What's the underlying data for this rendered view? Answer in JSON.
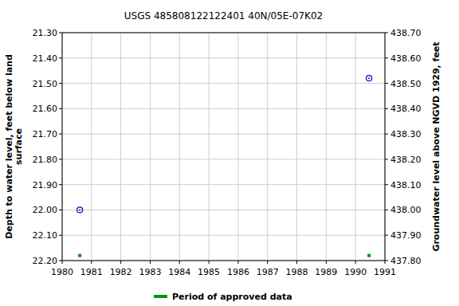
{
  "chart_data": {
    "type": "scatter",
    "title": "USGS 485808122122401 40N/05E-07K02",
    "y_label": [
      "Depth to water level, feet below land",
      "surface"
    ],
    "y2_label": "Groundwater level above NGVD 1929, feet",
    "xlim": [
      1980,
      1991
    ],
    "xticks": [
      1980,
      1981,
      1982,
      1983,
      1984,
      1985,
      1986,
      1987,
      1988,
      1989,
      1990,
      1991
    ],
    "ylim": [
      22.2,
      21.3
    ],
    "yticks": [
      {
        "value": 21.3,
        "label": "21.30"
      },
      {
        "value": 21.4,
        "label": "21.40"
      },
      {
        "value": 21.5,
        "label": "21.50"
      },
      {
        "value": 21.6,
        "label": "21.60"
      },
      {
        "value": 21.7,
        "label": "21.70"
      },
      {
        "value": 21.8,
        "label": "21.80"
      },
      {
        "value": 21.9,
        "label": "21.90"
      },
      {
        "value": 22.0,
        "label": "22.00"
      },
      {
        "value": 22.1,
        "label": "22.10"
      },
      {
        "value": 22.2,
        "label": "22.20"
      }
    ],
    "y2lim": [
      437.8,
      438.7
    ],
    "y2ticks": [
      {
        "value": 438.7,
        "label": "438.70"
      },
      {
        "value": 438.6,
        "label": "438.60"
      },
      {
        "value": 438.5,
        "label": "438.50"
      },
      {
        "value": 438.4,
        "label": "438.40"
      },
      {
        "value": 438.3,
        "label": "438.30"
      },
      {
        "value": 438.2,
        "label": "438.20"
      },
      {
        "value": 438.1,
        "label": "438.10"
      },
      {
        "value": 438.0,
        "label": "438.00"
      },
      {
        "value": 437.9,
        "label": "437.90"
      },
      {
        "value": 437.8,
        "label": "437.80"
      }
    ],
    "grid": true,
    "legend": "bottom",
    "series": [
      {
        "name": "Depth to water level",
        "type": "scatter",
        "color": "#0000cc",
        "marker": "circle",
        "x": [
          1980.6,
          1990.46
        ],
        "values": [
          22.0,
          21.48
        ]
      },
      {
        "name": "Period of approved data",
        "type": "scatter",
        "color": "#009900",
        "marker": "square",
        "x": [
          1980.6,
          1990.46
        ],
        "values": [
          22.18,
          22.18
        ]
      }
    ]
  }
}
